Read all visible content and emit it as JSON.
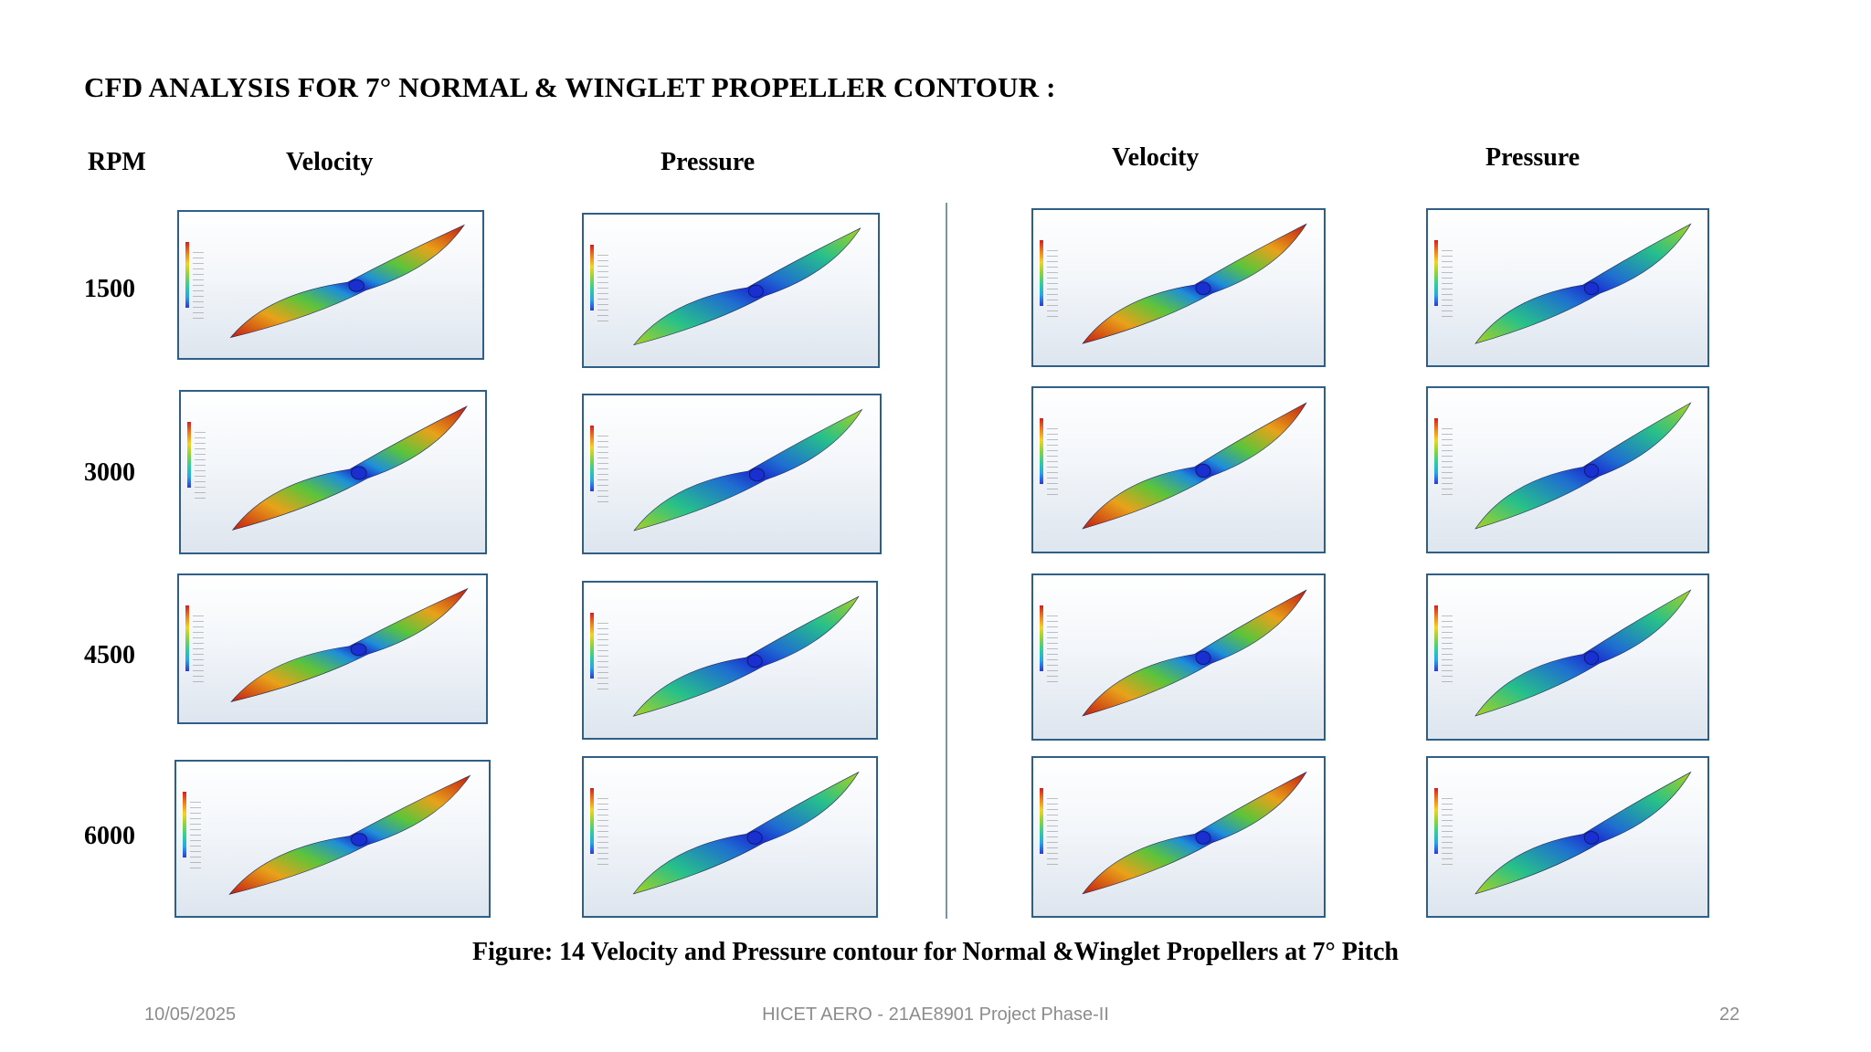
{
  "title": "CFD ANALYSIS FOR 7° NORMAL & WINGLET PROPELLER CONTOUR :",
  "headers": {
    "rpm": "RPM",
    "normal_velocity": "Velocity",
    "normal_pressure": "Pressure",
    "winglet_velocity": "Velocity",
    "winglet_pressure": "Pressure"
  },
  "rpm_values": [
    "1500",
    "3000",
    "4500",
    "6000"
  ],
  "caption": "Figure: 14 Velocity and Pressure contour for Normal &Winglet Propellers at 7° Pitch",
  "footer": {
    "date": "10/05/2025",
    "center": "HICET AERO - 21AE8901 Project Phase-II",
    "page": "22"
  },
  "colors": {
    "panel_border": "#2f5f86",
    "divider": "#7f93a8",
    "footer_text": "#8c8c8c"
  }
}
